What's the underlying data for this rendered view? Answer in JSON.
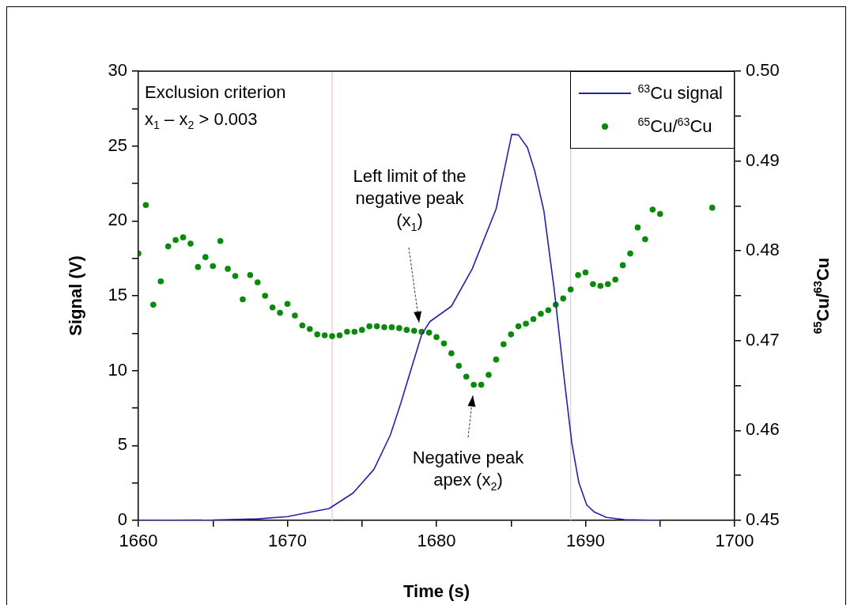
{
  "chart_data": {
    "type": "line",
    "xlabel": "Time (s)",
    "ylabel": "Signal (V)",
    "y2label": "$^{65}$Cu/$^{63}$Cu",
    "annotations": [
      "Exclusion criterion x$_{1}$ – x$_{2}$ > 0.003",
      "Left limit of the negative peak (x$_{1}$)",
      "Negative peak apex (x$_{2}$)"
    ],
    "xlim": [
      1660,
      1700
    ],
    "xticks": [
      1660,
      {
        "value": 1665,
        "label": null
      },
      1670,
      {
        "value": 1675,
        "label": null
      },
      1680,
      {
        "value": 1685,
        "label": null
      },
      1690,
      {
        "value": 1695,
        "label": null
      },
      1700
    ],
    "ylim": [
      0,
      30
    ],
    "yticks": [
      0,
      {
        "value": 2.5,
        "label": null
      },
      5,
      {
        "value": 7.5,
        "label": null
      },
      10,
      {
        "value": 12.5,
        "label": null
      },
      15,
      {
        "value": 17.5,
        "label": null
      },
      20,
      {
        "value": 22.5,
        "label": null
      },
      25,
      {
        "value": 27.5,
        "label": null
      },
      30
    ],
    "y2lim": [
      0.45,
      0.5
    ],
    "y2ticks": [
      0.45,
      {
        "value": 0.455,
        "label": null
      },
      0.46,
      {
        "value": 0.465,
        "label": null
      },
      0.47,
      {
        "value": 0.475,
        "label": null
      },
      0.48,
      {
        "value": 0.485,
        "label": null
      },
      0.49,
      {
        "value": 0.495,
        "label": null
      },
      {
        "value": 0.5,
        "label": "0.50"
      }
    ],
    "ref_lines": [
      {
        "axis": "x",
        "value": 1673,
        "color": "#f0c4c4"
      },
      {
        "axis": "x",
        "value": 1689,
        "color": "#f0c4c4"
      }
    ],
    "legend": "top right",
    "series": [
      {
        "name": "$^{63}$Cu signal",
        "type": "line",
        "color": "#2222aa",
        "marker": "none",
        "x": [
          1660,
          1665,
          1668,
          1670,
          1671,
          1672.8,
          1674.4,
          1675.8,
          1676.9,
          1677.6,
          1678.3,
          1679,
          1679.55,
          1681,
          1682.4,
          1684,
          1685.05,
          1685.5,
          1686.1,
          1686.6,
          1687.2,
          1687.9,
          1688.6,
          1689.08,
          1689.55,
          1690.08,
          1690.6,
          1691.4,
          1692.6,
          1695
        ],
        "values": [
          0,
          0.02,
          0.1,
          0.25,
          0.45,
          0.79,
          1.82,
          3.4,
          5.69,
          7.81,
          10.1,
          12.39,
          13.27,
          14.3,
          16.8,
          20.8,
          25.78,
          25.74,
          24.9,
          23.3,
          20.7,
          15.4,
          9.2,
          5.16,
          2.52,
          1.03,
          0.55,
          0.2,
          0.05,
          0
        ]
      },
      {
        "name": "$^{65}$Cu/$^{63}$Cu",
        "type": "scatter",
        "axis": "y2",
        "color": "#0a8a0a",
        "marker": "circle",
        "x": [
          1660,
          1660.5,
          1661,
          1661.5,
          1662,
          1662.5,
          1663,
          1663.5,
          1664,
          1664.5,
          1665,
          1665.5,
          1666,
          1666.5,
          1667,
          1667.5,
          1668,
          1668.5,
          1669,
          1669.5,
          1670,
          1670.5,
          1671,
          1671.5,
          1672,
          1672.5,
          1673,
          1673.5,
          1674,
          1674.5,
          1675,
          1675.5,
          1676,
          1676.5,
          1677,
          1677.5,
          1678,
          1678.5,
          1679,
          1679.5,
          1680,
          1680.5,
          1681,
          1681.5,
          1682,
          1682.5,
          1683,
          1683.5,
          1684,
          1684.5,
          1685,
          1685.5,
          1686,
          1686.5,
          1687,
          1687.5,
          1688,
          1688.5,
          1689,
          1689.5,
          1690,
          1690.5,
          1691,
          1691.5,
          1692,
          1692.5,
          1693,
          1693.5,
          1694,
          1694.5,
          1695,
          1698.5
        ],
        "values": [
          0.4797,
          0.4851,
          0.474,
          0.4766,
          0.4805,
          0.4812,
          0.4815,
          0.4808,
          0.4782,
          0.4793,
          0.4783,
          0.4811,
          0.478,
          0.4772,
          0.4746,
          0.4773,
          0.4765,
          0.475,
          0.4737,
          0.4731,
          0.4741,
          0.4728,
          0.4717,
          0.4713,
          0.4707,
          0.4706,
          0.4705,
          0.4706,
          0.471,
          0.471,
          0.4712,
          0.4716,
          0.4716,
          0.4715,
          0.4715,
          0.4714,
          0.4712,
          0.4711,
          0.471,
          0.4709,
          0.4704,
          0.4697,
          0.4686,
          0.4672,
          0.466,
          0.4651,
          0.4651,
          0.4662,
          0.4679,
          0.4696,
          0.4707,
          0.4716,
          0.4719,
          0.4724,
          0.473,
          0.4734,
          0.474,
          0.4747,
          0.4757,
          0.4773,
          0.4776,
          0.4763,
          0.4761,
          0.4763,
          0.4768,
          0.4784,
          0.4797,
          0.4826,
          0.4813,
          0.4846,
          0.4841,
          0.4848
        ]
      }
    ]
  }
}
